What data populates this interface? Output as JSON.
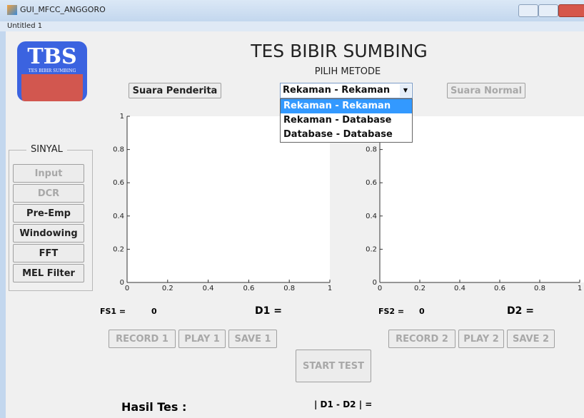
{
  "window": {
    "title": "GUI_MFCC_ANGGORO",
    "menu": "Untitled 1"
  },
  "logo": {
    "text": "TBS",
    "subtext": "TES BIBIR SUMBING"
  },
  "header": {
    "title": "TES BIBIR SUMBING",
    "method_label": "PILIH METODE"
  },
  "buttons": {
    "left": "Suara Penderita",
    "right": "Suara Normal"
  },
  "dropdown": {
    "selected": "Rekaman - Rekaman",
    "options": [
      "Rekaman - Rekaman",
      "Rekaman - Database",
      "Database - Database"
    ]
  },
  "sinyal": {
    "title": "SINYAL",
    "buttons": [
      "Input",
      "DCR",
      "Pre-Emp",
      "Windowing",
      "FFT",
      "MEL Filter"
    ]
  },
  "axes": [
    {
      "xticks": [
        "0",
        "0.2",
        "0.4",
        "0.6",
        "0.8",
        "1"
      ],
      "yticks": [
        "0",
        "0.2",
        "0.4",
        "0.6",
        "0.8",
        "1"
      ]
    },
    {
      "xticks": [
        "0",
        "0.2",
        "0.4",
        "0.6",
        "0.8",
        "1"
      ],
      "yticks": [
        "0",
        "0.2",
        "0.4",
        "0.6",
        "0.8"
      ]
    }
  ],
  "panels": [
    {
      "fs_label": "FS1 =",
      "fs_value": "0",
      "d_label": "D1 =",
      "buttons": [
        "RECORD 1",
        "PLAY 1",
        "SAVE 1"
      ]
    },
    {
      "fs_label": "FS2 =",
      "fs_value": "0",
      "d_label": "D2 =",
      "buttons": [
        "RECORD 2",
        "PLAY 2",
        "SAVE 2"
      ]
    }
  ],
  "start_test": "START TEST",
  "result": {
    "label": "Hasil Tes :",
    "diff_label": "| D1 - D2 | ="
  }
}
